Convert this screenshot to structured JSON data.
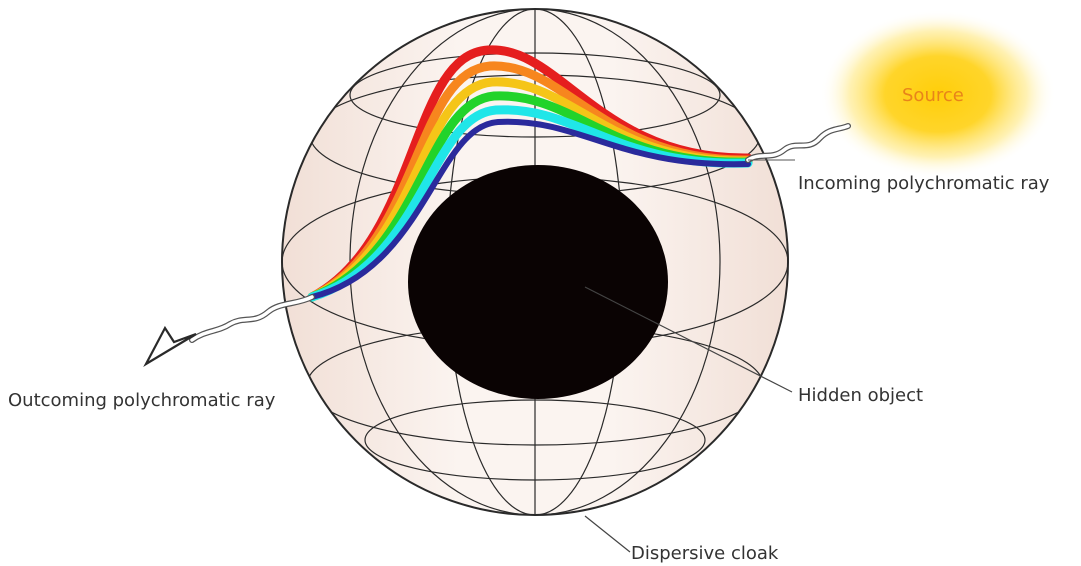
{
  "labels": {
    "source": "Source",
    "incoming": "Incoming polychromatic ray",
    "outgoing": "Outcoming polychromatic ray",
    "hidden": "Hidden object",
    "cloak": "Dispersive cloak"
  },
  "colors": {
    "source_glow": "#ffd21a",
    "source_text": "#e8841a",
    "sphere_edge": "#f3e2da",
    "hidden_object": "#0a0303",
    "spectrum": [
      "#e51e1e",
      "#f7861e",
      "#f5c518",
      "#22d32a",
      "#20e6e8",
      "#2a2a9c"
    ]
  }
}
